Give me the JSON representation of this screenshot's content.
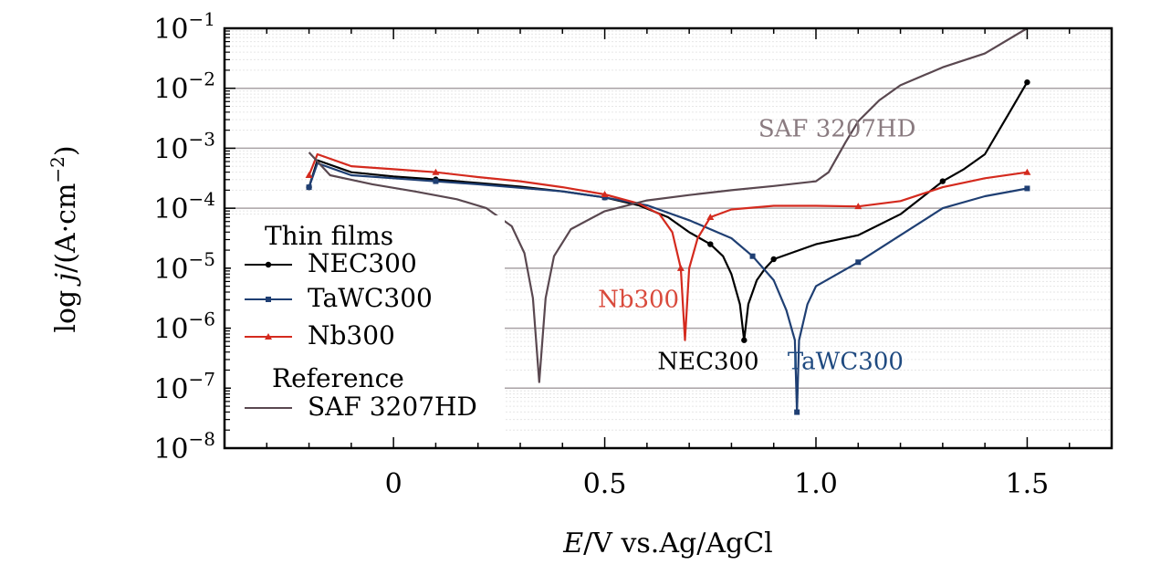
{
  "chart_data": {
    "type": "line",
    "xlabel": "E/V vs.Ag/AgCl",
    "xlabel_parts": {
      "var": "E",
      "rest": "/V vs.Ag/AgCl"
    },
    "ylabel": "log j/(A·cm−2)",
    "ylabel_parts": {
      "pre": "log ",
      "var": "j",
      "mid": "/(A·cm",
      "sup": "−2",
      "post": ")"
    },
    "xlim": [
      -0.4,
      1.7
    ],
    "ylim_log10": [
      -8,
      -1
    ],
    "y_scale": "log",
    "x_ticks": [
      {
        "value": 0,
        "label": "0"
      },
      {
        "value": 0.5,
        "label": "0.5"
      },
      {
        "value": 1.0,
        "label": "1.0"
      },
      {
        "value": 1.5,
        "label": "1.5"
      }
    ],
    "y_ticks": [
      {
        "exp": -1,
        "base": "10",
        "sup": "−1"
      },
      {
        "exp": -2,
        "base": "10",
        "sup": "−2"
      },
      {
        "exp": -3,
        "base": "10",
        "sup": "−3"
      },
      {
        "exp": -4,
        "base": "10",
        "sup": "−4"
      },
      {
        "exp": -5,
        "base": "10",
        "sup": "−5"
      },
      {
        "exp": -6,
        "base": "10",
        "sup": "−6"
      },
      {
        "exp": -7,
        "base": "10",
        "sup": "−7"
      },
      {
        "exp": -8,
        "base": "10",
        "sup": "−8"
      }
    ],
    "grid": true,
    "legend": {
      "position": "left",
      "header1": "Thin films",
      "header2": "Reference"
    },
    "series": [
      {
        "name": "NEC300",
        "color": "#000000",
        "marker": "circle",
        "points": [
          [
            -0.2,
            -3.65
          ],
          [
            -0.18,
            -3.2
          ],
          [
            -0.1,
            -3.4
          ],
          [
            0.0,
            -3.47
          ],
          [
            0.1,
            -3.52
          ],
          [
            0.2,
            -3.58
          ],
          [
            0.3,
            -3.64
          ],
          [
            0.4,
            -3.72
          ],
          [
            0.5,
            -3.82
          ],
          [
            0.58,
            -3.95
          ],
          [
            0.65,
            -4.15
          ],
          [
            0.7,
            -4.4
          ],
          [
            0.75,
            -4.6
          ],
          [
            0.78,
            -4.8
          ],
          [
            0.8,
            -5.1
          ],
          [
            0.82,
            -5.6
          ],
          [
            0.83,
            -6.2
          ],
          [
            0.84,
            -5.6
          ],
          [
            0.86,
            -5.2
          ],
          [
            0.88,
            -5.0
          ],
          [
            0.9,
            -4.85
          ],
          [
            1.0,
            -4.6
          ],
          [
            1.1,
            -4.45
          ],
          [
            1.2,
            -4.1
          ],
          [
            1.3,
            -3.55
          ],
          [
            1.35,
            -3.35
          ],
          [
            1.4,
            -3.1
          ],
          [
            1.45,
            -2.5
          ],
          [
            1.5,
            -1.9
          ]
        ]
      },
      {
        "name": "TaWC300",
        "color": "#1f3f73",
        "marker": "square",
        "points": [
          [
            -0.2,
            -3.65
          ],
          [
            -0.18,
            -3.25
          ],
          [
            -0.1,
            -3.45
          ],
          [
            0.0,
            -3.5
          ],
          [
            0.1,
            -3.55
          ],
          [
            0.2,
            -3.6
          ],
          [
            0.3,
            -3.66
          ],
          [
            0.4,
            -3.72
          ],
          [
            0.5,
            -3.82
          ],
          [
            0.6,
            -3.95
          ],
          [
            0.7,
            -4.2
          ],
          [
            0.8,
            -4.5
          ],
          [
            0.85,
            -4.8
          ],
          [
            0.9,
            -5.2
          ],
          [
            0.93,
            -5.7
          ],
          [
            0.95,
            -6.2
          ],
          [
            0.955,
            -7.4
          ],
          [
            0.96,
            -6.2
          ],
          [
            0.98,
            -5.6
          ],
          [
            1.0,
            -5.3
          ],
          [
            1.1,
            -4.9
          ],
          [
            1.2,
            -4.45
          ],
          [
            1.3,
            -4.0
          ],
          [
            1.4,
            -3.8
          ],
          [
            1.5,
            -3.67
          ]
        ]
      },
      {
        "name": "Nb300",
        "color": "#d42a1e",
        "marker": "triangle",
        "points": [
          [
            -0.2,
            -3.45
          ],
          [
            -0.18,
            -3.1
          ],
          [
            -0.1,
            -3.3
          ],
          [
            0.0,
            -3.35
          ],
          [
            0.1,
            -3.4
          ],
          [
            0.2,
            -3.48
          ],
          [
            0.3,
            -3.55
          ],
          [
            0.4,
            -3.65
          ],
          [
            0.5,
            -3.77
          ],
          [
            0.58,
            -3.92
          ],
          [
            0.63,
            -4.1
          ],
          [
            0.66,
            -4.4
          ],
          [
            0.68,
            -5.0
          ],
          [
            0.69,
            -6.2
          ],
          [
            0.7,
            -5.0
          ],
          [
            0.72,
            -4.5
          ],
          [
            0.75,
            -4.15
          ],
          [
            0.8,
            -4.02
          ],
          [
            0.9,
            -3.96
          ],
          [
            1.0,
            -3.96
          ],
          [
            1.1,
            -3.97
          ],
          [
            1.2,
            -3.88
          ],
          [
            1.3,
            -3.65
          ],
          [
            1.4,
            -3.5
          ],
          [
            1.5,
            -3.4
          ]
        ]
      },
      {
        "name": "SAF 3207HD",
        "color": "#5a4850",
        "marker": "none",
        "points": [
          [
            -0.2,
            -3.07
          ],
          [
            -0.15,
            -3.45
          ],
          [
            -0.05,
            -3.6
          ],
          [
            0.05,
            -3.72
          ],
          [
            0.15,
            -3.85
          ],
          [
            0.22,
            -4.0
          ],
          [
            0.28,
            -4.3
          ],
          [
            0.31,
            -4.75
          ],
          [
            0.33,
            -5.5
          ],
          [
            0.345,
            -6.9
          ],
          [
            0.36,
            -5.5
          ],
          [
            0.38,
            -4.8
          ],
          [
            0.42,
            -4.35
          ],
          [
            0.5,
            -4.05
          ],
          [
            0.6,
            -3.87
          ],
          [
            0.7,
            -3.78
          ],
          [
            0.8,
            -3.7
          ],
          [
            0.9,
            -3.63
          ],
          [
            1.0,
            -3.55
          ],
          [
            1.03,
            -3.4
          ],
          [
            1.07,
            -2.9
          ],
          [
            1.1,
            -2.55
          ],
          [
            1.15,
            -2.2
          ],
          [
            1.2,
            -1.95
          ],
          [
            1.3,
            -1.65
          ],
          [
            1.4,
            -1.42
          ],
          [
            1.5,
            -1.0
          ]
        ]
      }
    ],
    "annotations": [
      {
        "text": "SAF 3207HD",
        "color": "#8a7b80",
        "x": 1.05,
        "y": -2.8
      },
      {
        "text": "Nb300",
        "color": "#d94a3c",
        "x": 0.58,
        "y": -5.65
      },
      {
        "text": "NEC300",
        "color": "#000000",
        "x": 0.745,
        "y": -6.68
      },
      {
        "text": "TaWC300",
        "color": "#1f4a80",
        "x": 1.07,
        "y": -6.68
      }
    ]
  }
}
